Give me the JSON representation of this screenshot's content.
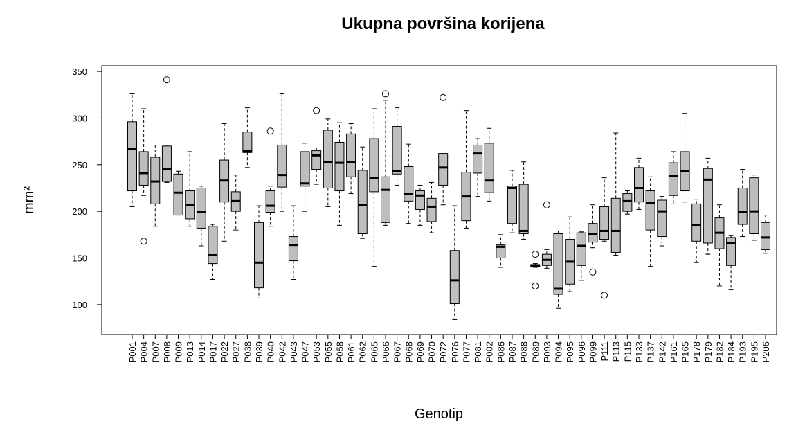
{
  "chart_data": {
    "type": "boxplot",
    "title": "Ukupna površina korijena",
    "xlabel": "Genotip",
    "ylabel": "mm²",
    "categories": [
      "P001",
      "P004",
      "P007",
      "P008",
      "P009",
      "P013",
      "P014",
      "P017",
      "P022",
      "P027",
      "P038",
      "P039",
      "P040",
      "P042",
      "P043",
      "P047",
      "P053",
      "P055",
      "P058",
      "P061",
      "P062",
      "P065",
      "P066",
      "P067",
      "P068",
      "P069",
      "P070",
      "P072",
      "P076",
      "P077",
      "P081",
      "P082",
      "P086",
      "P087",
      "P088",
      "P089",
      "P093",
      "P094",
      "P095",
      "P096",
      "P099",
      "P111",
      "P113",
      "P115",
      "P133",
      "P137",
      "P142",
      "P161",
      "P165",
      "P178",
      "P179",
      "P182",
      "P184",
      "P193",
      "P195",
      "P206"
    ],
    "low": [
      205,
      217,
      184,
      231,
      196,
      184,
      163,
      127,
      168,
      180,
      247,
      107,
      184,
      200,
      127,
      200,
      229,
      205,
      185,
      219,
      171,
      141,
      185,
      228,
      187,
      185,
      177,
      207,
      84,
      182,
      216,
      211,
      140,
      177,
      170,
      140,
      139,
      96,
      114,
      126,
      161,
      168,
      153,
      197,
      202,
      141,
      163,
      208,
      210,
      145,
      154,
      120,
      116,
      173,
      169,
      155
    ],
    "q1": [
      222,
      228,
      208,
      232,
      196,
      192,
      182,
      144,
      210,
      200,
      263,
      118,
      199,
      226,
      147,
      227,
      245,
      225,
      222,
      237,
      176,
      221,
      188,
      240,
      211,
      202,
      189,
      228,
      101,
      190,
      241,
      220,
      150,
      187,
      176,
      141,
      142,
      111,
      122,
      142,
      167,
      170,
      156,
      200,
      210,
      180,
      173,
      217,
      222,
      168,
      166,
      160,
      142,
      186,
      176,
      159
    ],
    "median": [
      267,
      241,
      232,
      245,
      220,
      207,
      199,
      153,
      233,
      211,
      265,
      145,
      206,
      239,
      164,
      230,
      260,
      253,
      252,
      253,
      207,
      236,
      223,
      243,
      219,
      217,
      205,
      247,
      126,
      216,
      262,
      233,
      162,
      225,
      179,
      142,
      148,
      117,
      146,
      163,
      176,
      179,
      179,
      211,
      225,
      209,
      200,
      238,
      243,
      185,
      234,
      177,
      166,
      199,
      200,
      172
    ],
    "q3": [
      296,
      264,
      258,
      270,
      240,
      222,
      225,
      184,
      255,
      221,
      285,
      188,
      222,
      271,
      173,
      264,
      265,
      287,
      274,
      283,
      244,
      278,
      237,
      291,
      248,
      222,
      214,
      262,
      158,
      242,
      271,
      273,
      164,
      227,
      229,
      143,
      154,
      176,
      170,
      177,
      187,
      205,
      214,
      219,
      247,
      222,
      212,
      252,
      264,
      208,
      246,
      193,
      172,
      225,
      236,
      188
    ],
    "high": [
      326,
      310,
      271,
      270,
      243,
      264,
      227,
      186,
      294,
      239,
      311,
      206,
      227,
      326,
      206,
      273,
      268,
      299,
      295,
      294,
      269,
      310,
      319,
      311,
      272,
      228,
      231,
      262,
      206,
      308,
      278,
      289,
      175,
      244,
      253,
      144,
      159,
      179,
      194,
      178,
      207,
      236,
      284,
      222,
      257,
      237,
      216,
      264,
      305,
      213,
      257,
      207,
      174,
      245,
      239,
      196
    ],
    "outliers": [
      [],
      [
        168
      ],
      [],
      [
        341
      ],
      [],
      [],
      [],
      [],
      [],
      [],
      [],
      [],
      [
        286
      ],
      [],
      [],
      [],
      [
        308
      ],
      [],
      [],
      [],
      [],
      [],
      [
        326
      ],
      [],
      [],
      [],
      [],
      [
        322
      ],
      [],
      [],
      [],
      [],
      [],
      [],
      [],
      [
        154,
        120
      ],
      [
        207
      ],
      [],
      [],
      [],
      [
        135
      ],
      [
        110
      ],
      [],
      [],
      [],
      [],
      [],
      [],
      [],
      [],
      [],
      [],
      [],
      [],
      [],
      []
    ],
    "color": "#bebebe",
    "ylim": [
      68,
      356
    ],
    "yticks": [
      100,
      150,
      200,
      250,
      300,
      350
    ]
  }
}
